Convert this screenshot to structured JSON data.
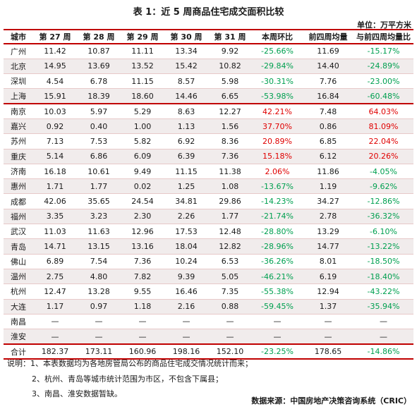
{
  "title": "表 1：近 5 周商品住宅成交面积比较",
  "unit": "单位：万平方米",
  "columns": [
    "城市",
    "第 27 周",
    "第 28 周",
    "第 29 周",
    "第 30 周",
    "第 31 周",
    "本周环比",
    "前四周均量",
    "与前四周均量比"
  ],
  "rows": [
    [
      "广州",
      "11.42",
      "10.87",
      "11.11",
      "13.34",
      "9.92",
      "-25.66%",
      "11.69",
      "-15.17%"
    ],
    [
      "北京",
      "14.95",
      "13.69",
      "13.52",
      "15.42",
      "10.82",
      "-29.84%",
      "14.40",
      "-24.89%"
    ],
    [
      "深圳",
      "4.54",
      "6.78",
      "11.15",
      "8.57",
      "5.98",
      "-30.31%",
      "7.76",
      "-23.00%"
    ],
    [
      "上海",
      "15.91",
      "18.39",
      "18.60",
      "14.46",
      "6.65",
      "-53.98%",
      "16.84",
      "-60.48%"
    ],
    [
      "南京",
      "10.03",
      "5.97",
      "5.29",
      "8.63",
      "12.27",
      "42.21%",
      "7.48",
      "64.03%"
    ],
    [
      "嘉兴",
      "0.92",
      "0.40",
      "1.00",
      "1.13",
      "1.56",
      "37.70%",
      "0.86",
      "81.09%"
    ],
    [
      "苏州",
      "7.13",
      "7.53",
      "5.82",
      "6.92",
      "8.36",
      "20.89%",
      "6.85",
      "22.04%"
    ],
    [
      "重庆",
      "5.14",
      "6.86",
      "6.09",
      "6.39",
      "7.36",
      "15.18%",
      "6.12",
      "20.26%"
    ],
    [
      "济南",
      "16.18",
      "10.61",
      "9.49",
      "11.15",
      "11.38",
      "2.06%",
      "11.86",
      "-4.05%"
    ],
    [
      "惠州",
      "1.71",
      "1.77",
      "0.02",
      "1.25",
      "1.08",
      "-13.67%",
      "1.19",
      "-9.62%"
    ],
    [
      "成都",
      "42.06",
      "35.65",
      "24.54",
      "34.81",
      "29.86",
      "-14.23%",
      "34.27",
      "-12.86%"
    ],
    [
      "福州",
      "3.35",
      "3.23",
      "2.30",
      "2.26",
      "1.77",
      "-21.74%",
      "2.78",
      "-36.32%"
    ],
    [
      "武汉",
      "11.03",
      "11.63",
      "12.96",
      "17.53",
      "12.48",
      "-28.80%",
      "13.29",
      "-6.10%"
    ],
    [
      "青岛",
      "14.71",
      "13.15",
      "13.16",
      "18.04",
      "12.82",
      "-28.96%",
      "14.77",
      "-13.22%"
    ],
    [
      "佛山",
      "6.89",
      "7.54",
      "7.36",
      "10.24",
      "6.53",
      "-36.26%",
      "8.01",
      "-18.50%"
    ],
    [
      "温州",
      "2.75",
      "4.80",
      "7.82",
      "9.39",
      "5.05",
      "-46.21%",
      "6.19",
      "-18.40%"
    ],
    [
      "杭州",
      "12.47",
      "13.28",
      "9.55",
      "16.46",
      "7.35",
      "-55.38%",
      "12.94",
      "-43.22%"
    ],
    [
      "大连",
      "1.17",
      "0.97",
      "1.18",
      "2.16",
      "0.88",
      "-59.45%",
      "1.37",
      "-35.94%"
    ],
    [
      "南昌",
      "—",
      "—",
      "—",
      "—",
      "—",
      "—",
      "—",
      "—"
    ],
    [
      "淮安",
      "—",
      "—",
      "—",
      "—",
      "—",
      "—",
      "—",
      "—"
    ]
  ],
  "total": [
    "合计",
    "182.37",
    "173.11",
    "160.96",
    "198.16",
    "152.10",
    "-23.25%",
    "178.65",
    "-14.86%"
  ],
  "notes": [
    "说明：1、本表数据均为各地房管局公布的商品住宅成交情况统计而来；",
    "2、杭州、青岛等城市统计范围为市区，不包含下属县；",
    "3、南昌、淮安数据暂缺。"
  ],
  "source": "数据来源：中国房地产决策咨询系统（CRIC）",
  "colors": {
    "rule": "#c00000",
    "positive": "#e00000",
    "negative": "#00a050",
    "stripe": "#f1ecec"
  }
}
